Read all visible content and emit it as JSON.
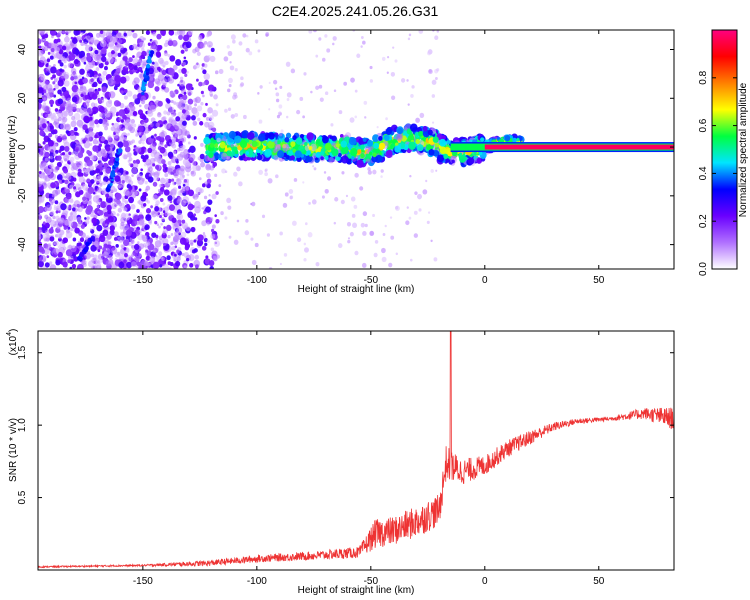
{
  "title": "C2E4.2025.241.05.26.G31",
  "chart_data": [
    {
      "type": "heatmap",
      "name": "spectrogram",
      "xlabel": "Height of straight line (km)",
      "ylabel": "Frequency (Hz)",
      "xlim": [
        -196,
        83
      ],
      "ylim": [
        -50,
        48
      ],
      "xticks": [
        -150,
        -100,
        -50,
        0,
        50
      ],
      "yticks": [
        -40,
        -20,
        0,
        20,
        40
      ],
      "xtick_labels": [
        "-150",
        "-100",
        "-50",
        "0",
        "50"
      ],
      "ytick_labels": [
        "-40",
        "-20",
        "0",
        "20",
        "40"
      ],
      "colorbar": {
        "label": "Normalized spectral amplitude",
        "range": [
          0,
          1
        ],
        "ticks": [
          0,
          0.2,
          0.4,
          0.6,
          0.8
        ],
        "tick_labels": [
          "0.0",
          "0.2",
          "0.4",
          "0.6",
          "0.8"
        ],
        "colors": [
          "#ffffff",
          "#b070ff",
          "#6a00ff",
          "#0000ff",
          "#00e5ff",
          "#00ff40",
          "#ffff00",
          "#ff8000",
          "#ff0000",
          "#ff0080"
        ]
      },
      "features": {
        "noise_region_x": [
          -196,
          -122
        ],
        "carrier_band_x": [
          -122,
          83
        ],
        "carrier_freq": 0,
        "carrier_saturated_from_x": 0
      }
    },
    {
      "type": "line",
      "name": "snr",
      "xlabel": "Height of straight line (km)",
      "ylabel": "SNR (10 * v/v)",
      "multiplier_label": "(x10",
      "multiplier_exp": "4",
      "multiplier_close": ")",
      "xlim": [
        -196,
        83
      ],
      "ylim": [
        0,
        1.65
      ],
      "xticks": [
        -150,
        -100,
        -50,
        0,
        50
      ],
      "yticks": [
        0.5,
        1.0,
        1.5
      ],
      "xtick_labels": [
        "-150",
        "-100",
        "-50",
        "0",
        "50"
      ],
      "ytick_labels": [
        "0.5",
        "1.0",
        "1.5"
      ],
      "color": "#ee3333",
      "trend": {
        "x": [
          -196,
          -150,
          -122,
          -100,
          -75,
          -55,
          -48,
          -40,
          -30,
          -20,
          -17,
          -10,
          0,
          10,
          20,
          30,
          40,
          55,
          70,
          83
        ],
        "y": [
          0.02,
          0.03,
          0.04,
          0.07,
          0.09,
          0.11,
          0.22,
          0.24,
          0.3,
          0.38,
          0.7,
          0.65,
          0.7,
          0.82,
          0.9,
          0.98,
          1.02,
          1.04,
          1.07,
          1.02
        ],
        "noise": [
          0.01,
          0.012,
          0.04,
          0.05,
          0.06,
          0.08,
          0.2,
          0.2,
          0.22,
          0.22,
          0.25,
          0.18,
          0.14,
          0.12,
          0.1,
          0.06,
          0.04,
          0.03,
          0.08,
          0.16
        ]
      },
      "spike": {
        "x": -15,
        "y": 1.65
      }
    }
  ]
}
